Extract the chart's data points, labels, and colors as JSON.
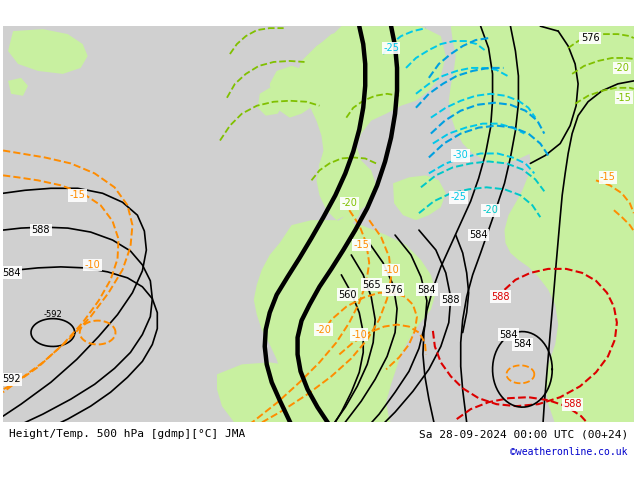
{
  "title_left": "Height/Temp. 500 hPa [gdmp][°C] JMA",
  "title_right": "Sa 28-09-2024 00:00 UTC (00+24)",
  "credit": "©weatheronline.co.uk",
  "bg_ocean_color": "#d0d0d0",
  "bg_land_color": "#c8f0a0",
  "height_color": "#000000",
  "temp_orange_color": "#ff8c00",
  "temp_cyan_color": "#00c8e8",
  "temp_blue_color": "#00a0e0",
  "temp_teal_color": "#00c8c8",
  "temp_red_color": "#dc0000",
  "temp_green_color": "#80c000",
  "bottom_text_color": "#000000",
  "credit_color": "#0000cc"
}
